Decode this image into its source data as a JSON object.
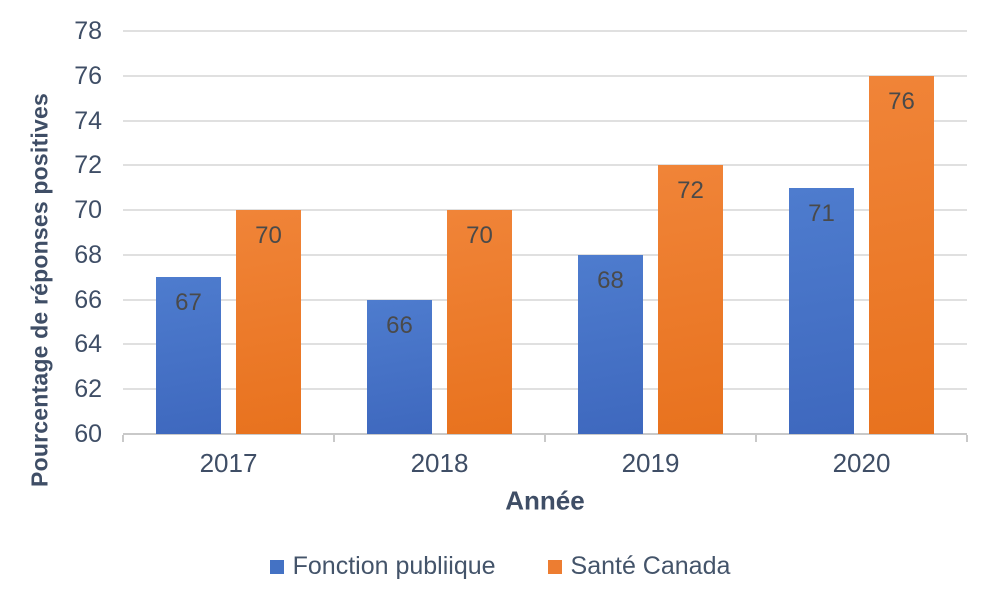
{
  "chart_data": {
    "type": "bar",
    "title": "",
    "categories": [
      "2017",
      "2018",
      "2019",
      "2020"
    ],
    "series": [
      {
        "name": "Fonction publiique",
        "color": "#4472C4",
        "values": [
          67,
          66,
          68,
          71
        ]
      },
      {
        "name": "Santé Canada",
        "color": "#ED7D31",
        "values": [
          70,
          70,
          72,
          76
        ]
      }
    ],
    "xlabel": "Année",
    "ylabel": "Pourcentage de réponses positives",
    "ylim": [
      60,
      78
    ],
    "ytick_step": 2,
    "yticks": [
      "60",
      "62",
      "64",
      "66",
      "68",
      "70",
      "72",
      "74",
      "76",
      "78"
    ],
    "grid": true,
    "legend_position": "bottom",
    "data_labels": "inside-end"
  },
  "colors": {
    "background": "#FFFFFF",
    "axis_text": "#3F4E66",
    "data_label": "#4A4A4A",
    "gridline": "#E0E0E0",
    "axis_line": "#C9C9C9",
    "series_blue": "#4472C4",
    "series_orange": "#ED7D31"
  }
}
